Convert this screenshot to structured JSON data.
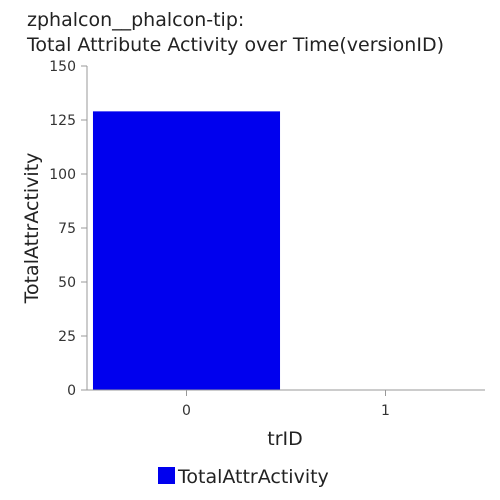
{
  "chart_data": {
    "type": "bar",
    "title_line1": "zphalcon__phalcon-tip:",
    "title_line2": "Total Attribute Activity over Time(versionID)",
    "xlabel": "trID",
    "ylabel": "TotalAttrActivity",
    "categories": [
      "0",
      "1"
    ],
    "series": [
      {
        "name": "TotalAttrActivity",
        "values": [
          129,
          0
        ],
        "color": "#0000ee"
      }
    ],
    "ylim": [
      0,
      150
    ],
    "yticks": [
      "0",
      "25",
      "50",
      "75",
      "100",
      "125",
      "150"
    ],
    "grid": false,
    "legend_position": "bottom-center"
  }
}
